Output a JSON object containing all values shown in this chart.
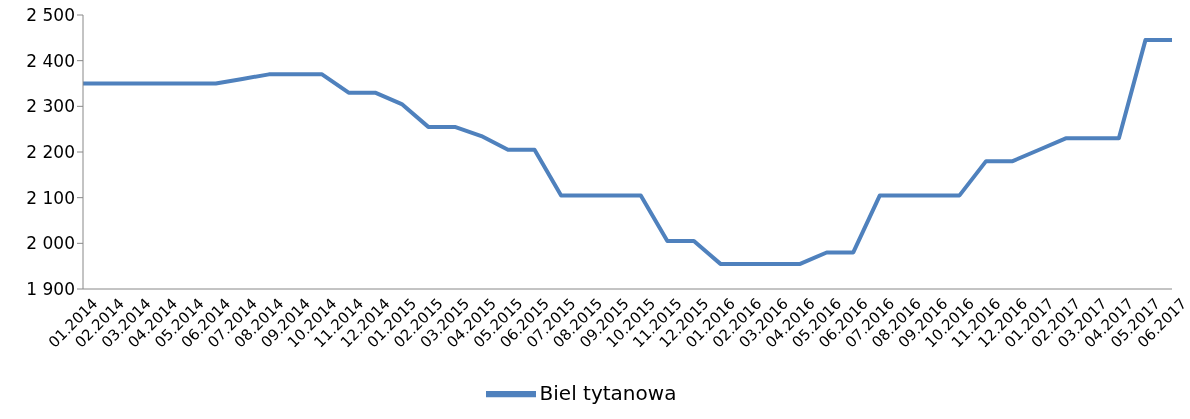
{
  "chart_data": {
    "type": "line",
    "categories": [
      "01.2014",
      "02.2014",
      "03.2014",
      "04.2014",
      "05.2014",
      "06.2014",
      "07.2014",
      "08.2014",
      "09.2014",
      "10.2014",
      "11.2014",
      "12.2014",
      "01.2015",
      "02.2015",
      "03.2015",
      "04.2015",
      "05.2015",
      "06.2015",
      "07.2015",
      "08.2015",
      "09.2015",
      "10.2015",
      "11.2015",
      "12.2015",
      "01.2016",
      "02.2016",
      "03.2016",
      "04.2016",
      "05.2016",
      "06.2016",
      "07.2016",
      "08.2016",
      "09.2016",
      "10.2016",
      "11.2016",
      "12.2016",
      "01.2017",
      "02.2017",
      "03.2017",
      "04.2017",
      "05.2017",
      "06.2017"
    ],
    "series": [
      {
        "name": "Biel tytanowa",
        "color": "#4f81bd",
        "values": [
          2350,
          2350,
          2350,
          2350,
          2350,
          2350,
          2360,
          2370,
          2370,
          2370,
          2330,
          2330,
          2305,
          2255,
          2255,
          2235,
          2205,
          2205,
          2105,
          2105,
          2105,
          2105,
          2005,
          2005,
          1955,
          1955,
          1955,
          1955,
          1980,
          1980,
          2105,
          2105,
          2105,
          2105,
          2180,
          2180,
          2205,
          2230,
          2230,
          2230,
          2445,
          2445
        ]
      }
    ],
    "ylim": [
      1900,
      2500
    ],
    "yticks": [
      {
        "value": 1900,
        "label": "1 900"
      },
      {
        "value": 2000,
        "label": "2 000"
      },
      {
        "value": 2100,
        "label": "2 100"
      },
      {
        "value": 2200,
        "label": "2 200"
      },
      {
        "value": 2300,
        "label": "2 300"
      },
      {
        "value": 2400,
        "label": "2 400"
      },
      {
        "value": 2500,
        "label": "2 500"
      }
    ],
    "grid": false,
    "legend": "bottom"
  }
}
